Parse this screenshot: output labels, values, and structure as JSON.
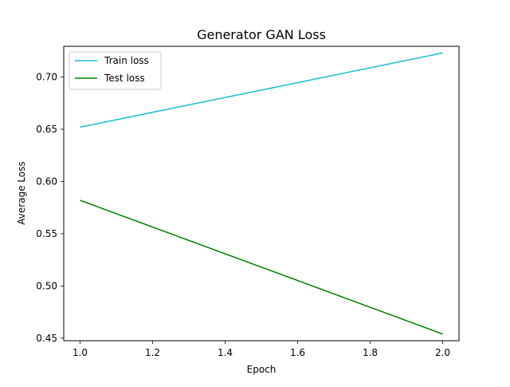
{
  "chart_data": {
    "type": "line",
    "title": "Generator GAN Loss",
    "xlabel": "Epoch",
    "ylabel": "Average Loss",
    "x": [
      1.0,
      2.0
    ],
    "series": [
      {
        "name": "Train loss",
        "color": "#17becf",
        "values": [
          0.652,
          0.723
        ]
      },
      {
        "name": "Test loss",
        "color": "#008000",
        "values": [
          0.582,
          0.454
        ]
      }
    ],
    "xlim": [
      0.955,
      2.045
    ],
    "ylim": [
      0.4476,
      0.7294
    ],
    "xticks": [
      "1.0",
      "1.2",
      "1.4",
      "1.6",
      "1.8",
      "2.0"
    ],
    "yticks": [
      "0.45",
      "0.50",
      "0.55",
      "0.60",
      "0.65",
      "0.70"
    ],
    "grid": false,
    "legend_position": "top-left"
  }
}
